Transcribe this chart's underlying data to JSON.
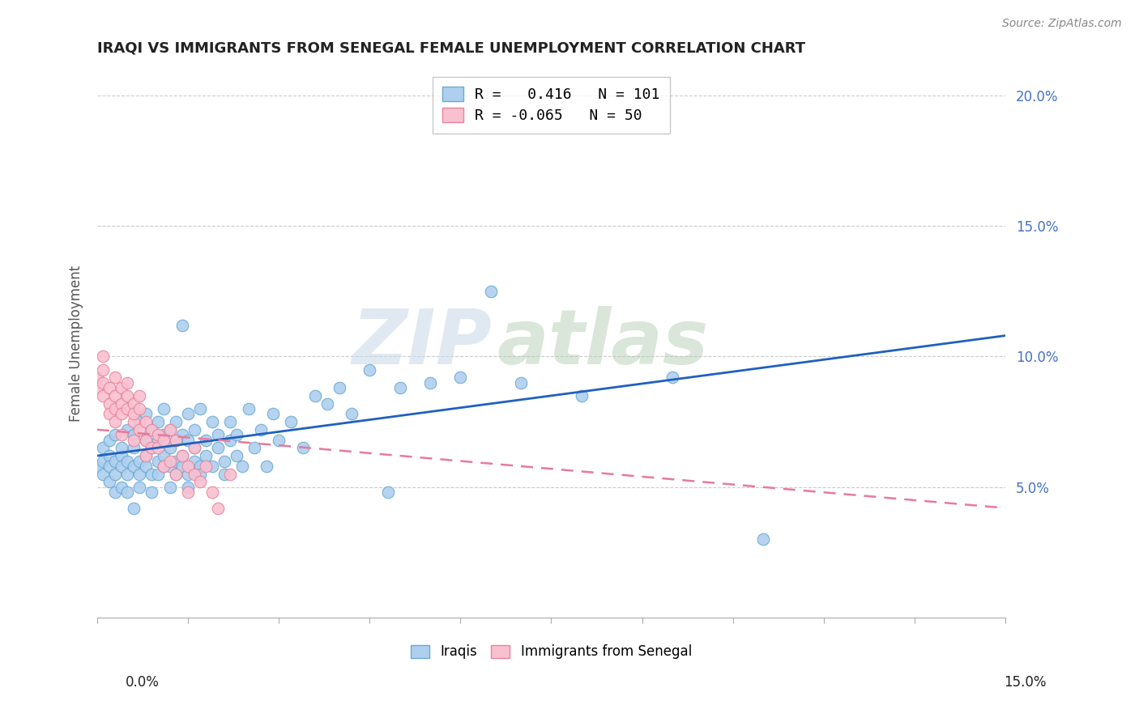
{
  "title": "IRAQI VS IMMIGRANTS FROM SENEGAL FEMALE UNEMPLOYMENT CORRELATION CHART",
  "source": "Source: ZipAtlas.com",
  "ylabel": "Female Unemployment",
  "legend_iraqis_R": "0.416",
  "legend_iraqis_N": "101",
  "legend_senegal_R": "-0.065",
  "legend_senegal_N": "50",
  "iraqis_color": "#aecfee",
  "iraqis_edge": "#6aaad4",
  "senegal_color": "#f9c0d0",
  "senegal_edge": "#e8849a",
  "trendline_iraqis_color": "#2060c0",
  "trendline_senegal_color": "#e87a9a",
  "watermark_zip": "ZIP",
  "watermark_atlas": "atlas",
  "xlim": [
    0.0,
    0.15
  ],
  "ylim": [
    0.0,
    0.21
  ],
  "ytick_vals": [
    0.05,
    0.1,
    0.15,
    0.2
  ],
  "ytick_labels": [
    "5.0%",
    "10.0%",
    "15.0%",
    "20.0%"
  ],
  "iraqis_trend_x": [
    0.0,
    0.15
  ],
  "iraqis_trend_y": [
    0.062,
    0.108
  ],
  "senegal_trend_x": [
    0.0,
    0.15
  ],
  "senegal_trend_y": [
    0.072,
    0.042
  ],
  "iraqis_points": [
    [
      0.0,
      0.058
    ],
    [
      0.001,
      0.06
    ],
    [
      0.001,
      0.055
    ],
    [
      0.001,
      0.065
    ],
    [
      0.002,
      0.052
    ],
    [
      0.002,
      0.062
    ],
    [
      0.002,
      0.068
    ],
    [
      0.002,
      0.058
    ],
    [
      0.003,
      0.048
    ],
    [
      0.003,
      0.06
    ],
    [
      0.003,
      0.055
    ],
    [
      0.003,
      0.07
    ],
    [
      0.004,
      0.05
    ],
    [
      0.004,
      0.062
    ],
    [
      0.004,
      0.058
    ],
    [
      0.004,
      0.065
    ],
    [
      0.005,
      0.055
    ],
    [
      0.005,
      0.048
    ],
    [
      0.005,
      0.072
    ],
    [
      0.005,
      0.06
    ],
    [
      0.006,
      0.058
    ],
    [
      0.006,
      0.065
    ],
    [
      0.006,
      0.042
    ],
    [
      0.006,
      0.07
    ],
    [
      0.007,
      0.06
    ],
    [
      0.007,
      0.055
    ],
    [
      0.007,
      0.075
    ],
    [
      0.007,
      0.05
    ],
    [
      0.008,
      0.062
    ],
    [
      0.008,
      0.068
    ],
    [
      0.008,
      0.058
    ],
    [
      0.008,
      0.078
    ],
    [
      0.009,
      0.055
    ],
    [
      0.009,
      0.065
    ],
    [
      0.009,
      0.072
    ],
    [
      0.009,
      0.048
    ],
    [
      0.01,
      0.06
    ],
    [
      0.01,
      0.068
    ],
    [
      0.01,
      0.055
    ],
    [
      0.01,
      0.075
    ],
    [
      0.011,
      0.062
    ],
    [
      0.011,
      0.07
    ],
    [
      0.011,
      0.058
    ],
    [
      0.011,
      0.08
    ],
    [
      0.012,
      0.065
    ],
    [
      0.012,
      0.058
    ],
    [
      0.012,
      0.072
    ],
    [
      0.012,
      0.05
    ],
    [
      0.013,
      0.068
    ],
    [
      0.013,
      0.06
    ],
    [
      0.013,
      0.075
    ],
    [
      0.013,
      0.055
    ],
    [
      0.014,
      0.062
    ],
    [
      0.014,
      0.07
    ],
    [
      0.014,
      0.058
    ],
    [
      0.014,
      0.112
    ],
    [
      0.015,
      0.068
    ],
    [
      0.015,
      0.055
    ],
    [
      0.015,
      0.078
    ],
    [
      0.015,
      0.05
    ],
    [
      0.016,
      0.06
    ],
    [
      0.016,
      0.072
    ],
    [
      0.016,
      0.065
    ],
    [
      0.017,
      0.058
    ],
    [
      0.017,
      0.08
    ],
    [
      0.017,
      0.055
    ],
    [
      0.018,
      0.068
    ],
    [
      0.018,
      0.062
    ],
    [
      0.019,
      0.075
    ],
    [
      0.019,
      0.058
    ],
    [
      0.02,
      0.065
    ],
    [
      0.02,
      0.07
    ],
    [
      0.021,
      0.06
    ],
    [
      0.021,
      0.055
    ],
    [
      0.022,
      0.068
    ],
    [
      0.022,
      0.075
    ],
    [
      0.023,
      0.062
    ],
    [
      0.023,
      0.07
    ],
    [
      0.024,
      0.058
    ],
    [
      0.025,
      0.08
    ],
    [
      0.026,
      0.065
    ],
    [
      0.027,
      0.072
    ],
    [
      0.028,
      0.058
    ],
    [
      0.029,
      0.078
    ],
    [
      0.03,
      0.068
    ],
    [
      0.032,
      0.075
    ],
    [
      0.034,
      0.065
    ],
    [
      0.036,
      0.085
    ],
    [
      0.038,
      0.082
    ],
    [
      0.04,
      0.088
    ],
    [
      0.042,
      0.078
    ],
    [
      0.045,
      0.095
    ],
    [
      0.048,
      0.048
    ],
    [
      0.05,
      0.088
    ],
    [
      0.055,
      0.09
    ],
    [
      0.06,
      0.092
    ],
    [
      0.065,
      0.125
    ],
    [
      0.07,
      0.09
    ],
    [
      0.08,
      0.085
    ],
    [
      0.095,
      0.092
    ],
    [
      0.11,
      0.03
    ]
  ],
  "senegal_points": [
    [
      0.0,
      0.092
    ],
    [
      0.0,
      0.088
    ],
    [
      0.001,
      0.095
    ],
    [
      0.001,
      0.085
    ],
    [
      0.001,
      0.1
    ],
    [
      0.001,
      0.09
    ],
    [
      0.002,
      0.082
    ],
    [
      0.002,
      0.088
    ],
    [
      0.002,
      0.078
    ],
    [
      0.003,
      0.085
    ],
    [
      0.003,
      0.092
    ],
    [
      0.003,
      0.075
    ],
    [
      0.003,
      0.08
    ],
    [
      0.004,
      0.088
    ],
    [
      0.004,
      0.082
    ],
    [
      0.004,
      0.078
    ],
    [
      0.004,
      0.07
    ],
    [
      0.005,
      0.085
    ],
    [
      0.005,
      0.08
    ],
    [
      0.005,
      0.09
    ],
    [
      0.006,
      0.075
    ],
    [
      0.006,
      0.082
    ],
    [
      0.006,
      0.078
    ],
    [
      0.006,
      0.068
    ],
    [
      0.007,
      0.08
    ],
    [
      0.007,
      0.072
    ],
    [
      0.007,
      0.085
    ],
    [
      0.008,
      0.068
    ],
    [
      0.008,
      0.075
    ],
    [
      0.008,
      0.062
    ],
    [
      0.009,
      0.072
    ],
    [
      0.009,
      0.065
    ],
    [
      0.01,
      0.07
    ],
    [
      0.01,
      0.065
    ],
    [
      0.011,
      0.058
    ],
    [
      0.011,
      0.068
    ],
    [
      0.012,
      0.072
    ],
    [
      0.012,
      0.06
    ],
    [
      0.013,
      0.055
    ],
    [
      0.013,
      0.068
    ],
    [
      0.014,
      0.062
    ],
    [
      0.015,
      0.058
    ],
    [
      0.015,
      0.048
    ],
    [
      0.016,
      0.065
    ],
    [
      0.016,
      0.055
    ],
    [
      0.017,
      0.052
    ],
    [
      0.018,
      0.058
    ],
    [
      0.019,
      0.048
    ],
    [
      0.02,
      0.042
    ],
    [
      0.022,
      0.055
    ]
  ]
}
